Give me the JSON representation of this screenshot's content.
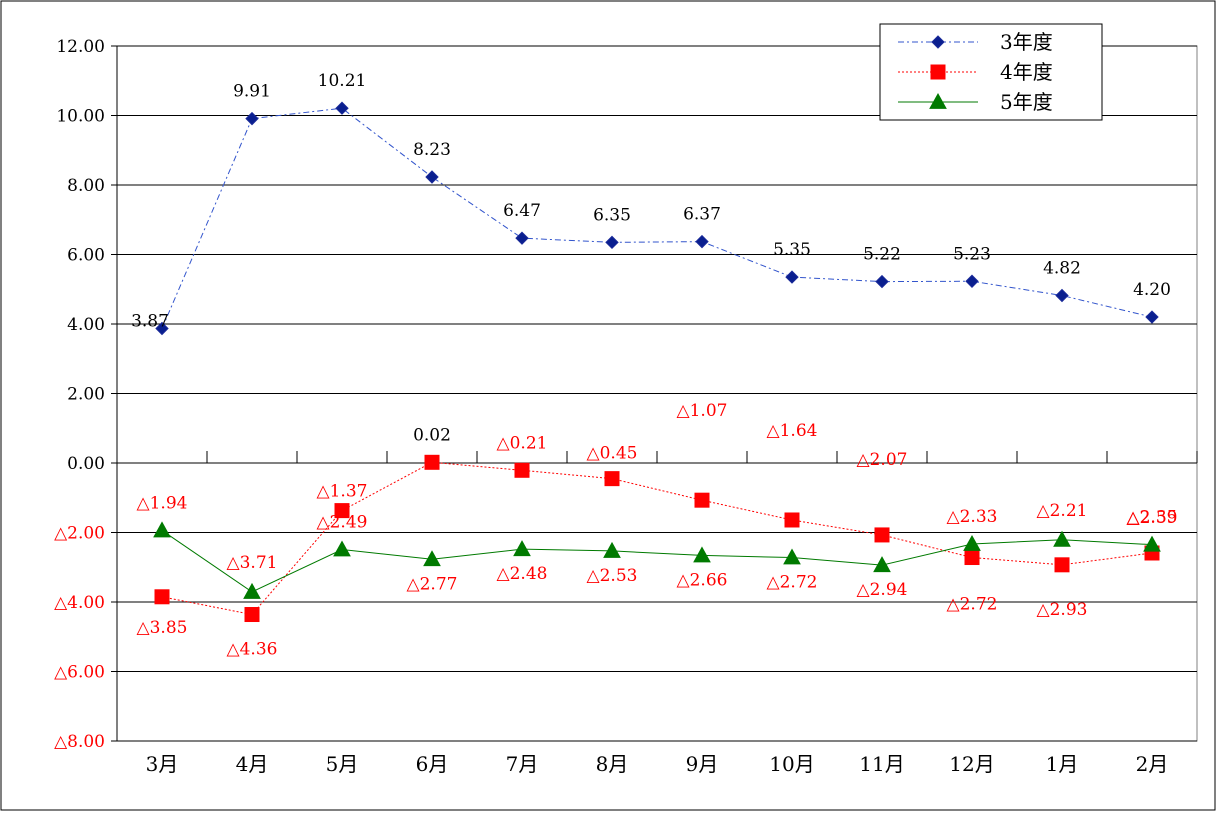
{
  "chart_data": {
    "type": "line",
    "categories": [
      "3月",
      "4月",
      "5月",
      "6月",
      "7月",
      "8月",
      "9月",
      "10月",
      "11月",
      "12月",
      "1月",
      "2月"
    ],
    "ylim": [
      -8,
      12
    ],
    "yticks": [
      12,
      10,
      8,
      6,
      4,
      2,
      0,
      -2,
      -4,
      -6,
      -8
    ],
    "ytick_labels": [
      "12.00",
      "10.00",
      "8.00",
      "6.00",
      "4.00",
      "2.00",
      "0.00",
      "△2.00",
      "△4.00",
      "△6.00",
      "△8.00"
    ],
    "grid": true,
    "legend_position": "top-right",
    "series": [
      {
        "name": "3年度",
        "color": "#3355cc",
        "marker": "diamond",
        "line_style": "dash-dot",
        "values": [
          3.87,
          9.91,
          10.21,
          8.23,
          6.47,
          6.35,
          6.37,
          5.35,
          5.22,
          5.23,
          4.82,
          4.2
        ],
        "labels": [
          "3.87",
          "9.91",
          "10.21",
          "8.23",
          "6.47",
          "6.35",
          "6.37",
          "5.35",
          "5.22",
          "5.23",
          "4.82",
          "4.20"
        ]
      },
      {
        "name": "4年度",
        "color": "#ff0000",
        "marker": "square",
        "line_style": "dotted",
        "values": [
          -3.85,
          -4.36,
          -1.37,
          0.02,
          -0.21,
          -0.45,
          -1.07,
          -1.64,
          -2.07,
          -2.72,
          -2.93,
          -2.59
        ],
        "labels": [
          "△3.85",
          "△4.36",
          "△1.37",
          "0.02",
          "△0.21",
          "△0.45",
          "△1.07",
          "△1.64",
          "△2.07",
          "△2.72",
          "△2.93",
          "△2.59"
        ]
      },
      {
        "name": "5年度",
        "color": "#007a00",
        "marker": "triangle",
        "line_style": "solid",
        "values": [
          -1.94,
          -3.71,
          -2.49,
          -2.77,
          -2.48,
          -2.53,
          -2.66,
          -2.72,
          -2.94,
          -2.33,
          -2.21,
          -2.35
        ],
        "labels": [
          "△1.94",
          "△3.71",
          "△2.49",
          "△2.77",
          "△2.48",
          "△2.53",
          "△2.66",
          "△2.72",
          "△2.94",
          "△2.33",
          "△2.21",
          "△2.35"
        ]
      }
    ],
    "colors": {
      "negative_tick_label": "#ff0000",
      "positive_label": "#000000"
    }
  }
}
